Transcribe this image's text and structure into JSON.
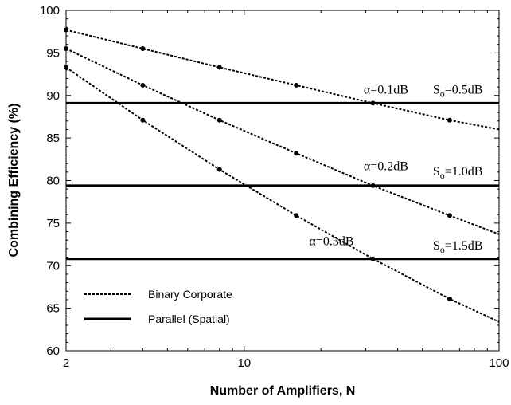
{
  "chart_data": {
    "type": "line",
    "xlabel": "Number of Amplifiers, N",
    "ylabel": "Combining Efficiency (%)",
    "x_scale": "log",
    "xlim": [
      2,
      100
    ],
    "ylim": [
      60,
      100
    ],
    "x_ticks": [
      2,
      10,
      100
    ],
    "y_ticks": [
      60,
      65,
      70,
      75,
      80,
      85,
      90,
      95,
      100
    ],
    "grid": false,
    "legend_position": "bottom-left",
    "legend": [
      {
        "label": "Binary Corporate",
        "style": "dotted"
      },
      {
        "label": "Parallel (Spatial)",
        "style": "solid"
      }
    ],
    "series": [
      {
        "kind": "binary",
        "style": "dotted",
        "annotation": "α=0.1dB",
        "points": [
          [
            2,
            97.7
          ],
          [
            4,
            95.5
          ],
          [
            8,
            93.3
          ],
          [
            16,
            91.2
          ],
          [
            32,
            89.1
          ],
          [
            64,
            87.1
          ]
        ],
        "line_end": [
          [
            100,
            86.0
          ]
        ]
      },
      {
        "kind": "binary",
        "style": "dotted",
        "annotation": "α=0.2dB",
        "points": [
          [
            2,
            95.5
          ],
          [
            4,
            91.2
          ],
          [
            8,
            87.1
          ],
          [
            16,
            83.2
          ],
          [
            32,
            79.4
          ],
          [
            64,
            75.9
          ]
        ],
        "line_end": [
          [
            100,
            73.7
          ]
        ]
      },
      {
        "kind": "binary",
        "style": "dotted",
        "annotation": "α=0.3dB",
        "points": [
          [
            2,
            93.3
          ],
          [
            4,
            87.1
          ],
          [
            8,
            81.3
          ],
          [
            16,
            75.9
          ],
          [
            32,
            70.8
          ],
          [
            64,
            66.1
          ]
        ],
        "line_end": [
          [
            100,
            63.4
          ]
        ]
      },
      {
        "kind": "parallel",
        "style": "solid",
        "annotation": "S",
        "annotation_sub": "o",
        "annotation_tail": "=0.5dB",
        "y": 89.1
      },
      {
        "kind": "parallel",
        "style": "solid",
        "annotation": "S",
        "annotation_sub": "o",
        "annotation_tail": "=1.0dB",
        "y": 79.4
      },
      {
        "kind": "parallel",
        "style": "solid",
        "annotation": "S",
        "annotation_sub": "o",
        "annotation_tail": "=1.5dB",
        "y": 70.8
      }
    ]
  }
}
